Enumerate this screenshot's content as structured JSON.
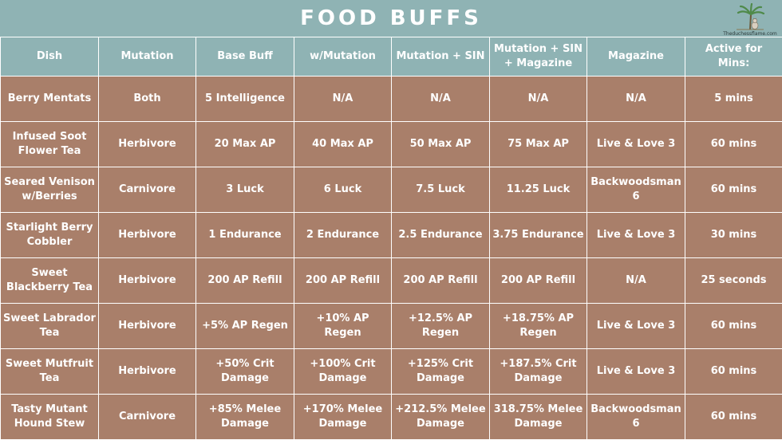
{
  "title": "FOOD BUFFS",
  "logo": {
    "icon": "cat-on-palm-tree-icon",
    "text": "Theduchessflame.com"
  },
  "colors": {
    "header_bg": "#8fb3b4",
    "row_bg": "#a97f6a",
    "border": "#ffffff",
    "text": "#ffffff"
  },
  "columns": [
    "Dish",
    "Mutation",
    "Base Buff",
    "w/Mutation",
    "Mutation + SIN",
    "Mutation + SIN + Magazine",
    "Magazine",
    "Active for Mins:"
  ],
  "rows": [
    [
      "Berry Mentats",
      "Both",
      "5 Intelligence",
      "N/A",
      "N/A",
      "N/A",
      "N/A",
      "5 mins"
    ],
    [
      "Infused Soot Flower Tea",
      "Herbivore",
      "20 Max AP",
      "40 Max AP",
      "50 Max AP",
      "75 Max AP",
      "Live & Love 3",
      "60 mins"
    ],
    [
      "Seared Venison w/Berries",
      "Carnivore",
      "3 Luck",
      "6 Luck",
      "7.5 Luck",
      "11.25 Luck",
      "Backwoodsman 6",
      "60 mins"
    ],
    [
      "Starlight Berry Cobbler",
      "Herbivore",
      "1 Endurance",
      "2 Endurance",
      "2.5 Endurance",
      "3.75 Endurance",
      "Live & Love 3",
      "30 mins"
    ],
    [
      "Sweet Blackberry Tea",
      "Herbivore",
      "200 AP Refill",
      "200 AP Refill",
      "200 AP Refill",
      "200 AP Refill",
      "N/A",
      "25 seconds"
    ],
    [
      "Sweet Labrador Tea",
      "Herbivore",
      "+5% AP Regen",
      "+10% AP Regen",
      "+12.5% AP Regen",
      "+18.75% AP Regen",
      "Live & Love 3",
      "60 mins"
    ],
    [
      "Sweet Mutfruit Tea",
      "Herbivore",
      "+50% Crit Damage",
      "+100% Crit Damage",
      "+125% Crit Damage",
      "+187.5% Crit Damage",
      "Live & Love 3",
      "60 mins"
    ],
    [
      "Tasty Mutant Hound Stew",
      "Carnivore",
      "+85% Melee Damage",
      "+170% Melee Damage",
      "+212.5% Melee Damage",
      "318.75% Melee Damage",
      "Backwoodsman 6",
      "60 mins"
    ]
  ]
}
